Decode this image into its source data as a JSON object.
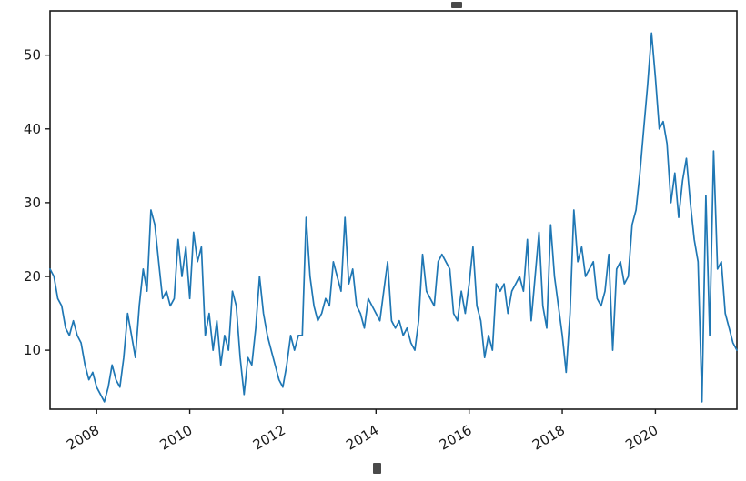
{
  "chart_data": {
    "type": "line",
    "title": "",
    "xlabel": "",
    "ylabel": "",
    "grid": false,
    "legend": null,
    "line_color": "#1f77b4",
    "axis_color": "#1a1a1a",
    "x_start": "2007-01",
    "x_frequency": "monthly",
    "x_tick_labels": [
      "2008",
      "2010",
      "2012",
      "2014",
      "2016",
      "2018",
      "2020"
    ],
    "x_tick_indices": [
      12,
      36,
      60,
      84,
      108,
      132,
      156
    ],
    "y_ticks": [
      10,
      20,
      30,
      40,
      50
    ],
    "ylim": [
      2,
      56
    ],
    "series": [
      {
        "name": "value",
        "values": [
          21,
          20,
          17,
          16,
          13,
          12,
          14,
          12,
          11,
          8,
          6,
          7,
          5,
          4,
          3,
          5,
          8,
          6,
          5,
          9,
          15,
          12,
          9,
          16,
          21,
          18,
          29,
          27,
          22,
          17,
          18,
          16,
          17,
          25,
          20,
          24,
          17,
          26,
          22,
          24,
          12,
          15,
          10,
          14,
          8,
          12,
          10,
          18,
          16,
          9,
          4,
          9,
          8,
          13,
          20,
          15,
          12,
          10,
          8,
          6,
          5,
          8,
          12,
          10,
          12,
          12,
          28,
          20,
          16,
          14,
          15,
          17,
          16,
          22,
          20,
          18,
          28,
          19,
          21,
          16,
          15,
          13,
          17,
          16,
          15,
          14,
          18,
          22,
          14,
          13,
          14,
          12,
          13,
          11,
          10,
          14,
          23,
          18,
          17,
          16,
          22,
          23,
          22,
          21,
          15,
          14,
          18,
          15,
          19,
          24,
          16,
          14,
          9,
          12,
          10,
          19,
          18,
          19,
          15,
          18,
          19,
          20,
          18,
          25,
          14,
          20,
          26,
          16,
          13,
          27,
          20,
          16,
          12,
          7,
          15,
          29,
          22,
          24,
          20,
          21,
          22,
          17,
          16,
          18,
          23,
          10,
          21,
          22,
          19,
          20,
          27,
          29,
          34,
          40,
          46,
          53,
          47,
          40,
          41,
          38,
          30,
          34,
          28,
          33,
          36,
          30,
          25,
          22,
          3,
          31,
          12,
          37,
          21,
          22,
          15,
          13,
          11,
          10
        ]
      }
    ]
  }
}
